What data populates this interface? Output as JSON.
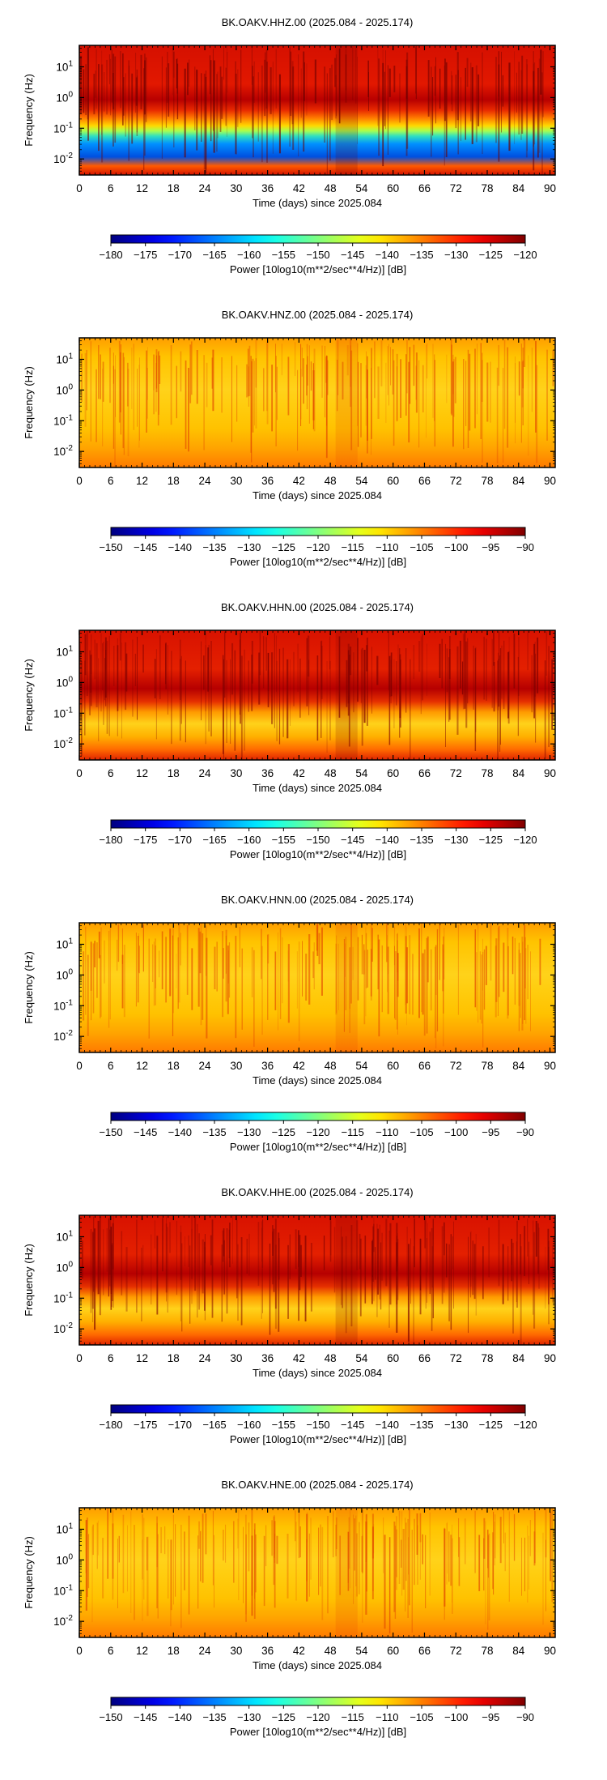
{
  "chart_data": [
    {
      "type": "heatmap",
      "title": "BK.OAKV.HHZ.00 (2025.084 - 2025.174)",
      "xlabel": "Time (days) since 2025.084",
      "ylabel": "Frequency (Hz)",
      "x_ticks": [
        "0",
        "6",
        "12",
        "18",
        "24",
        "30",
        "36",
        "42",
        "48",
        "54",
        "60",
        "66",
        "72",
        "78",
        "84",
        "90"
      ],
      "y_ticks": [
        {
          "base": "10",
          "exp": "1"
        },
        {
          "base": "10",
          "exp": "0"
        },
        {
          "base": "10",
          "exp": "-1"
        },
        {
          "base": "10",
          "exp": "-2"
        }
      ],
      "xlim": [
        0,
        91
      ],
      "ylim": [
        0.003,
        50
      ],
      "y_scale": "log",
      "colorbar": {
        "label": "Power [10log10(m**2/sec**4/Hz)] [dB]",
        "range": [
          -180,
          -120
        ],
        "ticks": [
          "−180",
          "−175",
          "−170",
          "−165",
          "−160",
          "−155",
          "−150",
          "−145",
          "−140",
          "−135",
          "−130",
          "−125",
          "−120"
        ]
      },
      "palette": "jet-high"
    },
    {
      "type": "heatmap",
      "title": "BK.OAKV.HNZ.00 (2025.084 - 2025.174)",
      "xlabel": "Time (days) since 2025.084",
      "ylabel": "Frequency (Hz)",
      "x_ticks": [
        "0",
        "6",
        "12",
        "18",
        "24",
        "30",
        "36",
        "42",
        "48",
        "54",
        "60",
        "66",
        "72",
        "78",
        "84",
        "90"
      ],
      "y_ticks": [
        {
          "base": "10",
          "exp": "1"
        },
        {
          "base": "10",
          "exp": "0"
        },
        {
          "base": "10",
          "exp": "-1"
        },
        {
          "base": "10",
          "exp": "-2"
        }
      ],
      "xlim": [
        0,
        91
      ],
      "ylim": [
        0.003,
        50
      ],
      "y_scale": "log",
      "colorbar": {
        "label": "Power [10log10(m**2/sec**4/Hz)] [dB]",
        "range": [
          -150,
          -90
        ],
        "ticks": [
          "−150",
          "−145",
          "−140",
          "−135",
          "−130",
          "−125",
          "−120",
          "−115",
          "−110",
          "−105",
          "−100",
          "−95",
          "−90"
        ]
      },
      "palette": "yellow-orange"
    },
    {
      "type": "heatmap",
      "title": "BK.OAKV.HHN.00 (2025.084 - 2025.174)",
      "xlabel": "Time (days) since 2025.084",
      "ylabel": "Frequency (Hz)",
      "x_ticks": [
        "0",
        "6",
        "12",
        "18",
        "24",
        "30",
        "36",
        "42",
        "48",
        "54",
        "60",
        "66",
        "72",
        "78",
        "84",
        "90"
      ],
      "y_ticks": [
        {
          "base": "10",
          "exp": "1"
        },
        {
          "base": "10",
          "exp": "0"
        },
        {
          "base": "10",
          "exp": "-1"
        },
        {
          "base": "10",
          "exp": "-2"
        }
      ],
      "xlim": [
        0,
        91
      ],
      "ylim": [
        0.003,
        50
      ],
      "y_scale": "log",
      "colorbar": {
        "label": "Power [10log10(m**2/sec**4/Hz)] [dB]",
        "range": [
          -180,
          -120
        ],
        "ticks": [
          "−180",
          "−175",
          "−170",
          "−165",
          "−160",
          "−155",
          "−150",
          "−145",
          "−140",
          "−135",
          "−130",
          "−125",
          "−120"
        ]
      },
      "palette": "red-yellow"
    },
    {
      "type": "heatmap",
      "title": "BK.OAKV.HNN.00 (2025.084 - 2025.174)",
      "xlabel": "Time (days) since 2025.084",
      "ylabel": "Frequency (Hz)",
      "x_ticks": [
        "0",
        "6",
        "12",
        "18",
        "24",
        "30",
        "36",
        "42",
        "48",
        "54",
        "60",
        "66",
        "72",
        "78",
        "84",
        "90"
      ],
      "y_ticks": [
        {
          "base": "10",
          "exp": "1"
        },
        {
          "base": "10",
          "exp": "0"
        },
        {
          "base": "10",
          "exp": "-1"
        },
        {
          "base": "10",
          "exp": "-2"
        }
      ],
      "xlim": [
        0,
        91
      ],
      "ylim": [
        0.003,
        50
      ],
      "y_scale": "log",
      "colorbar": {
        "label": "Power [10log10(m**2/sec**4/Hz)] [dB]",
        "range": [
          -150,
          -90
        ],
        "ticks": [
          "−150",
          "−145",
          "−140",
          "−135",
          "−130",
          "−125",
          "−120",
          "−115",
          "−110",
          "−105",
          "−100",
          "−95",
          "−90"
        ]
      },
      "palette": "yellow-orange"
    },
    {
      "type": "heatmap",
      "title": "BK.OAKV.HHE.00 (2025.084 - 2025.174)",
      "xlabel": "Time (days) since 2025.084",
      "ylabel": "Frequency (Hz)",
      "x_ticks": [
        "0",
        "6",
        "12",
        "18",
        "24",
        "30",
        "36",
        "42",
        "48",
        "54",
        "60",
        "66",
        "72",
        "78",
        "84",
        "90"
      ],
      "y_ticks": [
        {
          "base": "10",
          "exp": "1"
        },
        {
          "base": "10",
          "exp": "0"
        },
        {
          "base": "10",
          "exp": "-1"
        },
        {
          "base": "10",
          "exp": "-2"
        }
      ],
      "xlim": [
        0,
        91
      ],
      "ylim": [
        0.003,
        50
      ],
      "y_scale": "log",
      "colorbar": {
        "label": "Power [10log10(m**2/sec**4/Hz)] [dB]",
        "range": [
          -180,
          -120
        ],
        "ticks": [
          "−180",
          "−175",
          "−170",
          "−165",
          "−160",
          "−155",
          "−150",
          "−145",
          "−140",
          "−135",
          "−130",
          "−125",
          "−120"
        ]
      },
      "palette": "red-yellow"
    },
    {
      "type": "heatmap",
      "title": "BK.OAKV.HNE.00 (2025.084 - 2025.174)",
      "xlabel": "Time (days) since 2025.084",
      "ylabel": "Frequency (Hz)",
      "x_ticks": [
        "0",
        "6",
        "12",
        "18",
        "24",
        "30",
        "36",
        "42",
        "48",
        "54",
        "60",
        "66",
        "72",
        "78",
        "84",
        "90"
      ],
      "y_ticks": [
        {
          "base": "10",
          "exp": "1"
        },
        {
          "base": "10",
          "exp": "0"
        },
        {
          "base": "10",
          "exp": "-1"
        },
        {
          "base": "10",
          "exp": "-2"
        }
      ],
      "xlim": [
        0,
        91
      ],
      "ylim": [
        0.003,
        50
      ],
      "y_scale": "log",
      "colorbar": {
        "label": "Power [10log10(m**2/sec**4/Hz)] [dB]",
        "range": [
          -150,
          -90
        ],
        "ticks": [
          "−150",
          "−145",
          "−140",
          "−135",
          "−130",
          "−125",
          "−120",
          "−115",
          "−110",
          "−105",
          "−100",
          "−95",
          "−90"
        ]
      },
      "palette": "yellow-orange"
    }
  ]
}
